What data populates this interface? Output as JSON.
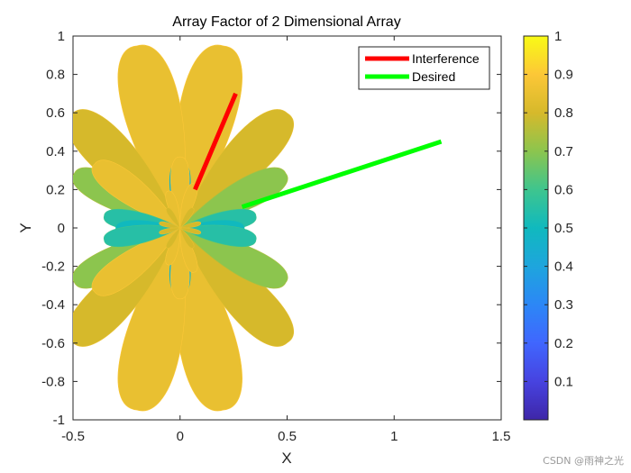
{
  "chart_data": {
    "type": "scatter",
    "title": "Array Factor of 2 Dimensional Array",
    "xlabel": "X",
    "ylabel": "Y",
    "xlim": [
      -0.5,
      1.5
    ],
    "ylim": [
      -1,
      1
    ],
    "xticks": [
      -0.5,
      0,
      0.5,
      1,
      1.5
    ],
    "xtick_labels": [
      "-0.5",
      "0",
      "0.5",
      "1",
      "1.5"
    ],
    "yticks": [
      -1,
      -0.8,
      -0.6,
      -0.4,
      -0.2,
      0,
      0.2,
      0.4,
      0.6,
      0.8,
      1
    ],
    "ytick_labels": [
      "-1",
      "-0.8",
      "-0.6",
      "-0.4",
      "-0.2",
      "0",
      "0.2",
      "0.4",
      "0.6",
      "0.8",
      "1"
    ],
    "grid": false,
    "legend_position": "top-right",
    "series": [
      {
        "name": "Interference",
        "color": "#ff0000",
        "x": [
          0.07,
          0.26
        ],
        "y": [
          0.2,
          0.7
        ]
      },
      {
        "name": "Desired",
        "color": "#00ff00",
        "x": [
          0.29,
          1.22
        ],
        "y": [
          0.11,
          0.45
        ]
      }
    ],
    "pattern_lobes": [
      {
        "angle_deg": 78,
        "length": 0.97,
        "value": 0.85
      },
      {
        "angle_deg": 102,
        "length": 0.97,
        "value": 0.85
      },
      {
        "angle_deg": 50,
        "length": 0.78,
        "value": 0.8
      },
      {
        "angle_deg": 130,
        "length": 0.78,
        "value": 0.8
      },
      {
        "angle_deg": 30,
        "length": 0.57,
        "value": 0.7
      },
      {
        "angle_deg": 150,
        "length": 0.57,
        "value": 0.7
      },
      {
        "angle_deg": 140,
        "length": 0.52,
        "value": 0.85
      },
      {
        "angle_deg": 10,
        "length": 0.36,
        "value": 0.55
      },
      {
        "angle_deg": 170,
        "length": 0.36,
        "value": 0.55
      },
      {
        "angle_deg": 0,
        "length": 0.3,
        "value": 0.5
      },
      {
        "angle_deg": 180,
        "length": 0.3,
        "value": 0.5
      },
      {
        "angle_deg": 90,
        "length": 0.35,
        "value": 0.45
      },
      {
        "angle_deg": -78,
        "length": 0.97,
        "value": 0.85
      },
      {
        "angle_deg": -102,
        "length": 0.97,
        "value": 0.85
      },
      {
        "angle_deg": -50,
        "length": 0.78,
        "value": 0.8
      },
      {
        "angle_deg": -130,
        "length": 0.78,
        "value": 0.8
      },
      {
        "angle_deg": -30,
        "length": 0.57,
        "value": 0.7
      },
      {
        "angle_deg": -150,
        "length": 0.57,
        "value": 0.7
      },
      {
        "angle_deg": -140,
        "length": 0.52,
        "value": 0.85
      },
      {
        "angle_deg": -10,
        "length": 0.36,
        "value": 0.55
      },
      {
        "angle_deg": -170,
        "length": 0.36,
        "value": 0.55
      },
      {
        "angle_deg": -90,
        "length": 0.35,
        "value": 0.45
      }
    ],
    "inner_lobes": [
      {
        "angle_deg": 90,
        "length": 0.37,
        "value": 0.85
      },
      {
        "angle_deg": 74,
        "length": 0.24,
        "value": 0.85
      },
      {
        "angle_deg": 106,
        "length": 0.2,
        "value": 0.85
      },
      {
        "angle_deg": 60,
        "length": 0.12,
        "value": 0.8
      },
      {
        "angle_deg": 120,
        "length": 0.12,
        "value": 0.8
      },
      {
        "angle_deg": 15,
        "length": 0.1,
        "value": 0.8
      },
      {
        "angle_deg": 165,
        "length": 0.1,
        "value": 0.8
      },
      {
        "angle_deg": -90,
        "length": 0.37,
        "value": 0.85
      },
      {
        "angle_deg": -74,
        "length": 0.24,
        "value": 0.85
      },
      {
        "angle_deg": -106,
        "length": 0.2,
        "value": 0.85
      },
      {
        "angle_deg": -60,
        "length": 0.12,
        "value": 0.8
      },
      {
        "angle_deg": -120,
        "length": 0.12,
        "value": 0.8
      },
      {
        "angle_deg": -15,
        "length": 0.1,
        "value": 0.8
      },
      {
        "angle_deg": -165,
        "length": 0.1,
        "value": 0.8
      }
    ],
    "colorbar": {
      "min": 0,
      "max": 1,
      "ticks": [
        0.1,
        0.2,
        0.3,
        0.4,
        0.5,
        0.6,
        0.7,
        0.8,
        0.9,
        1
      ],
      "tick_labels": [
        "0.1",
        "0.2",
        "0.3",
        "0.4",
        "0.5",
        "0.6",
        "0.7",
        "0.8",
        "0.9",
        "1"
      ],
      "colormap": "parula"
    }
  },
  "watermark": "CSDN @雨神之光"
}
